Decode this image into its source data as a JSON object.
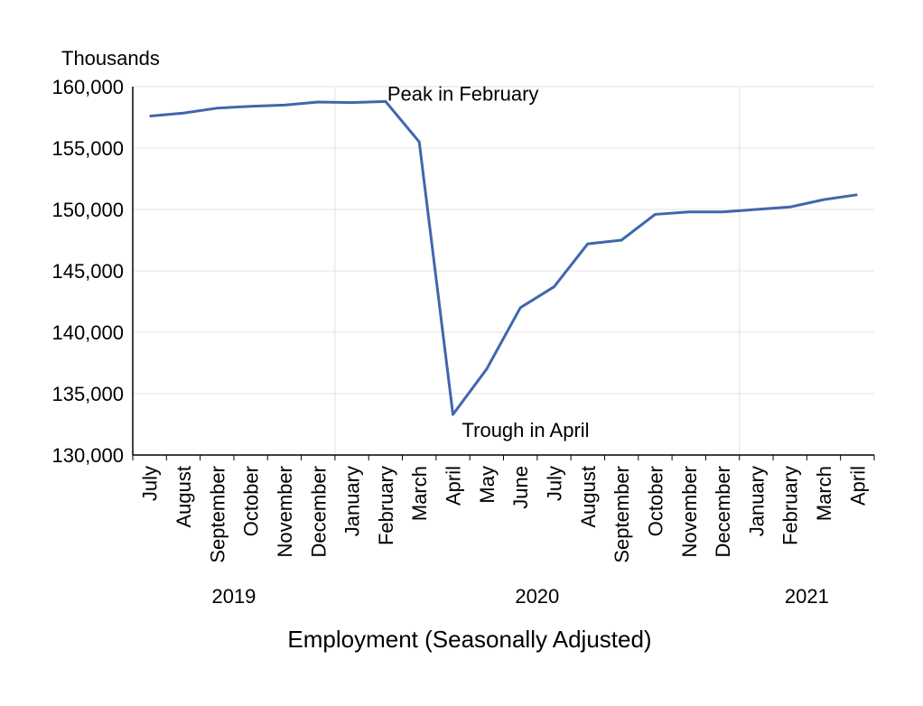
{
  "chart_data": {
    "type": "line",
    "title": "Employment (Seasonally Adjusted)",
    "ylabel": "Thousands",
    "xlabel": "",
    "ylim": [
      130000,
      160000
    ],
    "yticks": [
      "130,000",
      "135,000",
      "140,000",
      "145,000",
      "150,000",
      "155,000",
      "160,000"
    ],
    "ytick_values": [
      130000,
      135000,
      140000,
      145000,
      150000,
      155000,
      160000
    ],
    "categories": [
      "July",
      "August",
      "September",
      "October",
      "November",
      "December",
      "January",
      "February",
      "March",
      "April",
      "May",
      "June",
      "July",
      "August",
      "September",
      "October",
      "November",
      "December",
      "January",
      "February",
      "March",
      "April"
    ],
    "years": [
      {
        "label": "2019",
        "from": 0,
        "to": 5
      },
      {
        "label": "2020",
        "from": 6,
        "to": 17
      },
      {
        "label": "2021",
        "from": 18,
        "to": 21
      }
    ],
    "series": [
      {
        "color": "#3f67ad",
        "values": [
          157600,
          157850,
          158250,
          158400,
          158500,
          158750,
          158700,
          158800,
          155500,
          133300,
          137000,
          142000,
          143700,
          147200,
          147500,
          149600,
          149800,
          149800,
          150000,
          150200,
          150800,
          151200
        ]
      }
    ],
    "annotations": [
      {
        "text": "Peak in February",
        "index": 7
      },
      {
        "text": "Trough in April",
        "index": 9
      }
    ],
    "grid": true,
    "legend": "none"
  }
}
